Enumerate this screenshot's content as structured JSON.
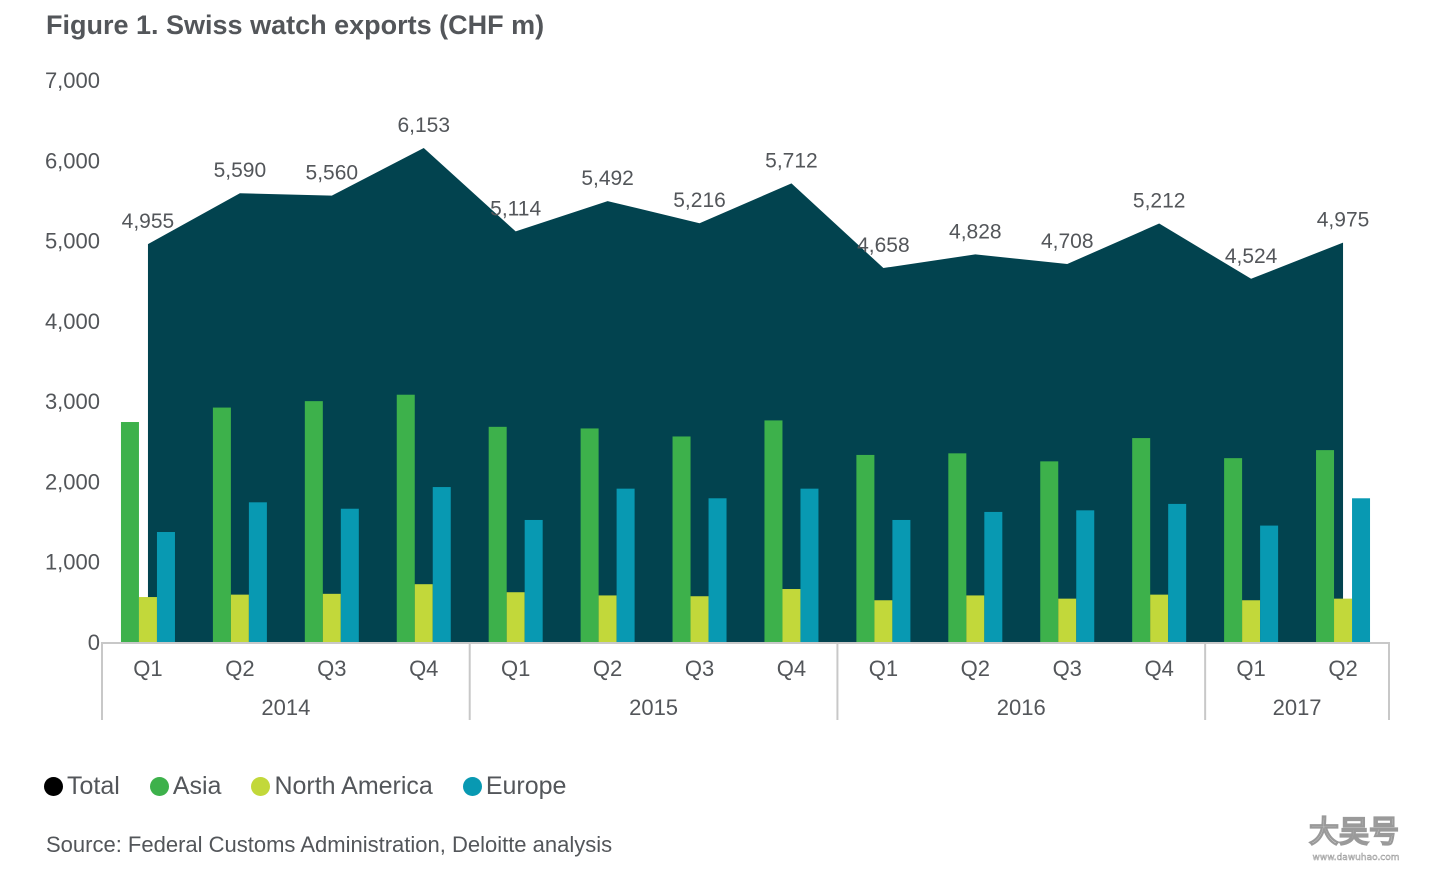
{
  "title": "Figure 1. Swiss watch exports (CHF m)",
  "source": "Source: Federal Customs Administration, Deloitte analysis",
  "watermark": {
    "text": "大吴号",
    "subtext": "www.dawuhao.com"
  },
  "colors": {
    "Total": "#02434f",
    "Asia": "#3db14b",
    "North America": "#c2d83a",
    "Europe": "#0899b2",
    "axis": "#c8c8c8",
    "text": "#53565a"
  },
  "chart_data": {
    "type": "bar",
    "title": "Figure 1. Swiss watch exports (CHF m)",
    "ylim": [
      0,
      7000
    ],
    "yticks": [
      "0",
      "1,000",
      "2,000",
      "3,000",
      "4,000",
      "5,000",
      "6,000",
      "7,000"
    ],
    "categories": [
      "Q1",
      "Q2",
      "Q3",
      "Q4",
      "Q1",
      "Q2",
      "Q3",
      "Q4",
      "Q1",
      "Q2",
      "Q3",
      "Q4",
      "Q1",
      "Q2"
    ],
    "years": [
      {
        "label": "2014",
        "count": 4
      },
      {
        "label": "2015",
        "count": 4
      },
      {
        "label": "2016",
        "count": 4
      },
      {
        "label": "2017",
        "count": 2
      }
    ],
    "legend_position": "bottom-left",
    "series": [
      {
        "name": "Total",
        "kind": "area",
        "values": [
          4955,
          5590,
          5560,
          6153,
          5114,
          5492,
          5216,
          5712,
          4658,
          4828,
          4708,
          5212,
          4524,
          4975
        ],
        "labels": [
          "4,955",
          "5,590",
          "5,560",
          "6,153",
          "5,114",
          "5,492",
          "5,216",
          "5,712",
          "4,658",
          "4,828",
          "4,708",
          "5,212",
          "4,524",
          "4,975"
        ]
      },
      {
        "name": "Asia",
        "kind": "bar",
        "values": [
          2740,
          2920,
          3000,
          3080,
          2680,
          2660,
          2560,
          2760,
          2330,
          2350,
          2250,
          2540,
          2290,
          2390
        ]
      },
      {
        "name": "North America",
        "kind": "bar",
        "values": [
          560,
          590,
          600,
          720,
          620,
          580,
          570,
          660,
          520,
          580,
          540,
          590,
          520,
          540
        ]
      },
      {
        "name": "Europe",
        "kind": "bar",
        "values": [
          1370,
          1740,
          1660,
          1930,
          1520,
          1910,
          1790,
          1910,
          1520,
          1620,
          1640,
          1720,
          1450,
          1790
        ]
      }
    ]
  }
}
